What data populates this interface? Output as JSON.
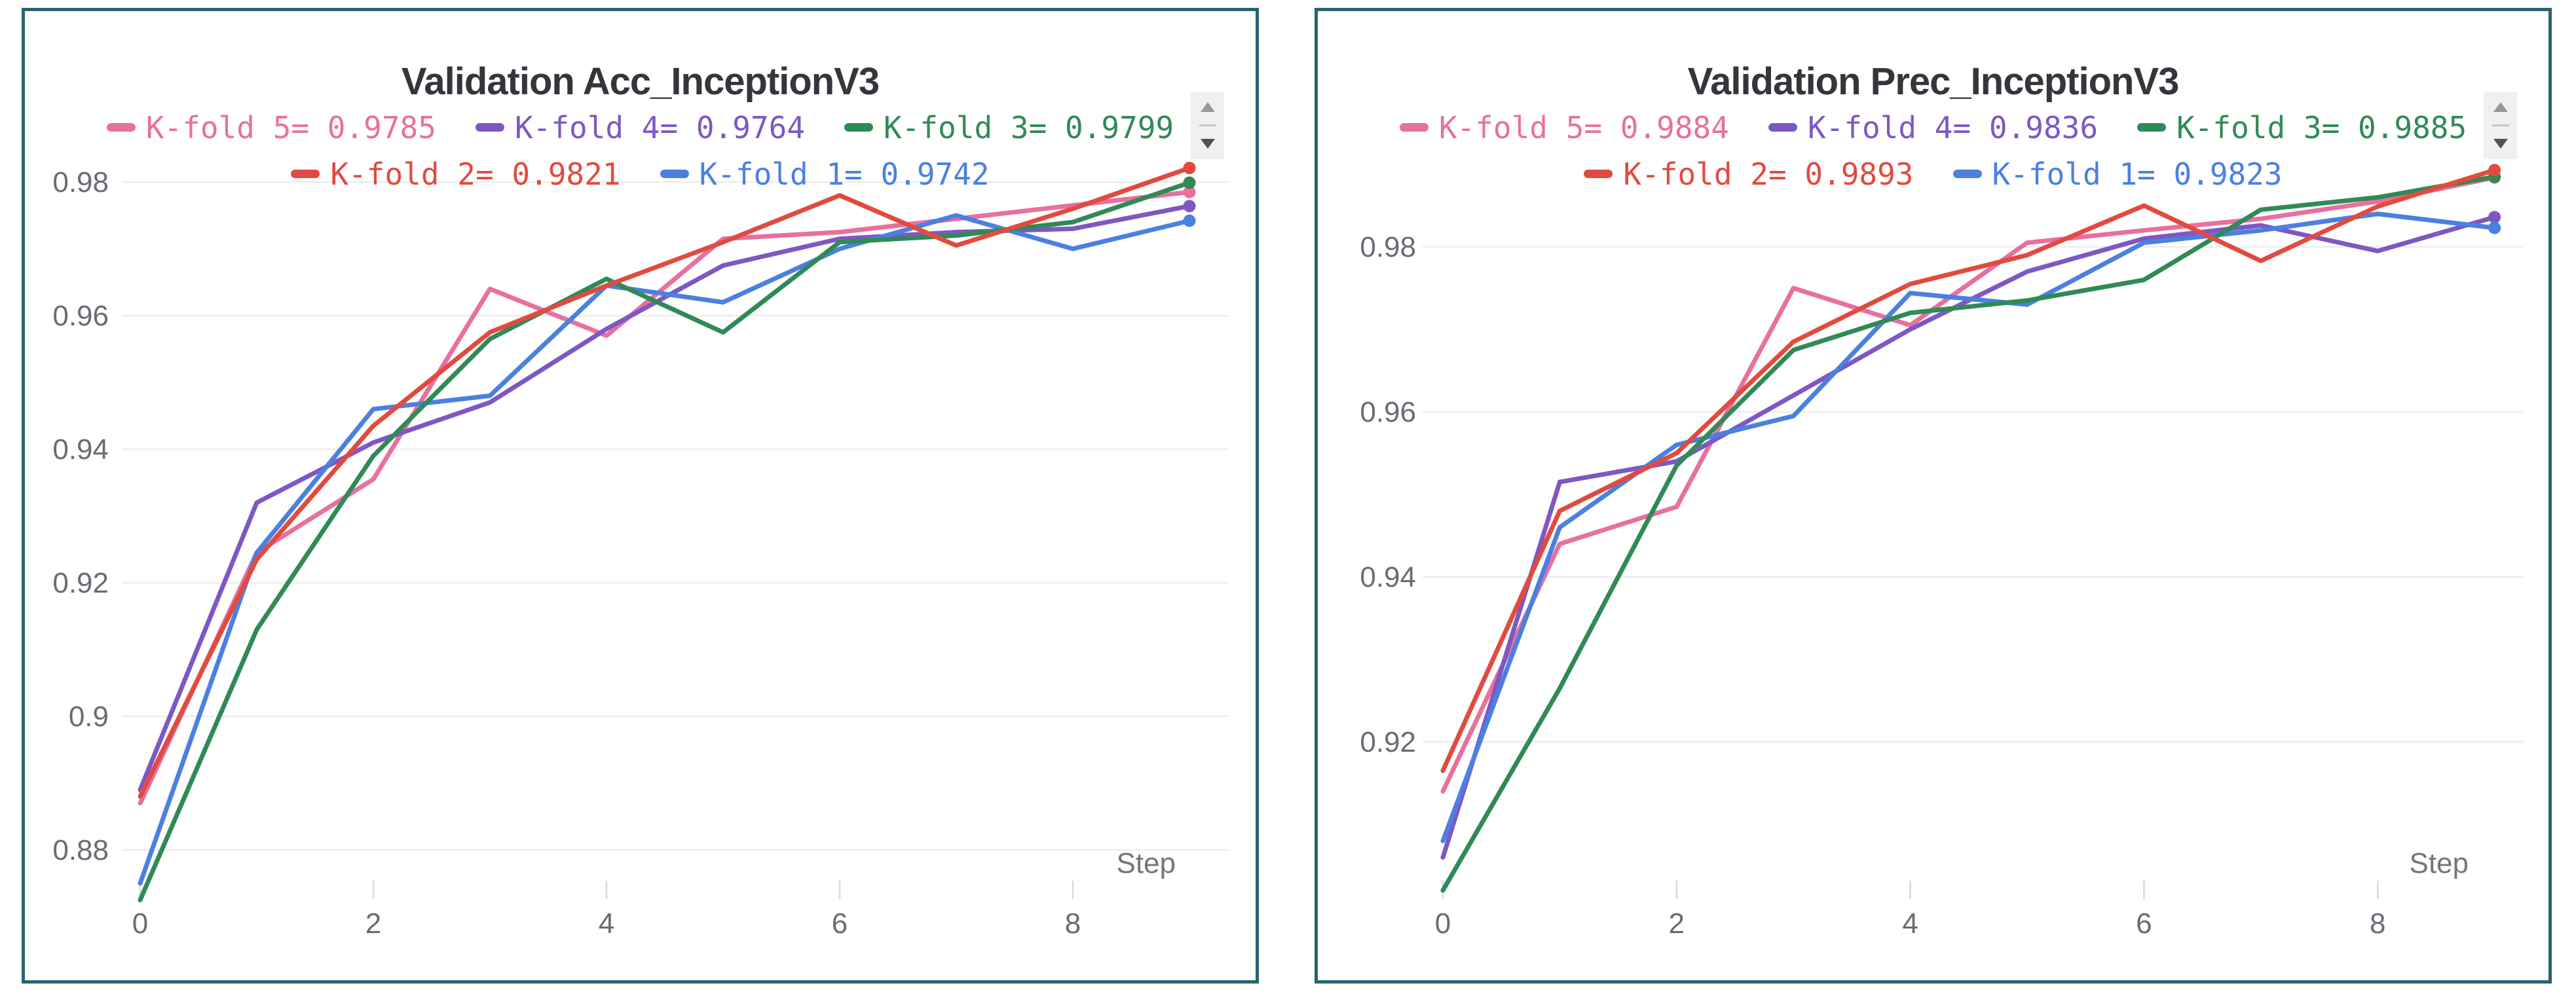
{
  "chart_data": [
    {
      "type": "line",
      "title": "Validation Acc_InceptionV3",
      "xlabel": "Step",
      "x": [
        0,
        1,
        2,
        3,
        4,
        5,
        6,
        7,
        8,
        9
      ],
      "x_tick_labels": [
        "0",
        "2",
        "4",
        "6",
        "8"
      ],
      "y_tick_labels": [
        "0.98",
        "0.96",
        "0.94",
        "0.92",
        "0.9",
        "0.88"
      ],
      "ylim": [
        0.871,
        0.985
      ],
      "grid": "horizontal-only",
      "legend_position": "top-center-two-rows",
      "series": [
        {
          "name": "K-fold 5",
          "legend_label": "K-fold 5= 0.9785",
          "final_value": 0.9785,
          "color": "#e8709f",
          "values": [
            0.887,
            0.9245,
            0.9355,
            0.964,
            0.957,
            0.9715,
            0.9725,
            0.9745,
            0.9765,
            0.9785
          ]
        },
        {
          "name": "K-fold 4",
          "legend_label": "K-fold 4= 0.9764",
          "final_value": 0.9764,
          "color": "#7e57c4",
          "values": [
            0.889,
            0.932,
            0.941,
            0.947,
            0.958,
            0.9675,
            0.9715,
            0.9725,
            0.973,
            0.9764
          ]
        },
        {
          "name": "K-fold 3",
          "legend_label": "K-fold 3= 0.9799",
          "final_value": 0.9799,
          "color": "#308a56",
          "values": [
            0.8725,
            0.913,
            0.939,
            0.9565,
            0.9655,
            0.9575,
            0.971,
            0.972,
            0.974,
            0.9799
          ]
        },
        {
          "name": "K-fold 2",
          "legend_label": "K-fold 2= 0.9821",
          "final_value": 0.9821,
          "color": "#e14b3f",
          "values": [
            0.888,
            0.9235,
            0.9435,
            0.9575,
            0.9645,
            0.971,
            0.978,
            0.9705,
            0.976,
            0.9821
          ]
        },
        {
          "name": "K-fold 1",
          "legend_label": "K-fold 1= 0.9742",
          "final_value": 0.9742,
          "color": "#4b80e1",
          "values": [
            0.875,
            0.9245,
            0.946,
            0.948,
            0.9645,
            0.962,
            0.97,
            0.975,
            0.97,
            0.9742
          ]
        }
      ],
      "legend_rows": [
        [
          "K-fold 5",
          "K-fold 4",
          "K-fold 3"
        ],
        [
          "K-fold 2",
          "K-fold 1"
        ]
      ]
    },
    {
      "type": "line",
      "title": "Validation Prec_InceptionV3",
      "xlabel": "Step",
      "x": [
        0,
        1,
        2,
        3,
        4,
        5,
        6,
        7,
        8,
        9
      ],
      "x_tick_labels": [
        "0",
        "2",
        "4",
        "6",
        "8"
      ],
      "y_tick_labels": [
        "0.98",
        "0.96",
        "0.94",
        "0.92"
      ],
      "ylim": [
        0.9,
        0.992
      ],
      "grid": "horizontal-only",
      "legend_position": "top-center-two-rows",
      "series": [
        {
          "name": "K-fold 5",
          "legend_label": "K-fold 5= 0.9884",
          "final_value": 0.9884,
          "color": "#e8709f",
          "values": [
            0.914,
            0.944,
            0.9485,
            0.975,
            0.9705,
            0.9805,
            0.982,
            0.9834,
            0.9855,
            0.9884
          ]
        },
        {
          "name": "K-fold 4",
          "legend_label": "K-fold 4= 0.9836",
          "final_value": 0.9836,
          "color": "#7e57c4",
          "values": [
            0.906,
            0.9515,
            0.954,
            0.962,
            0.97,
            0.977,
            0.981,
            0.9826,
            0.9795,
            0.9836
          ]
        },
        {
          "name": "K-fold 3",
          "legend_label": "K-fold 3= 0.9885",
          "final_value": 0.9885,
          "color": "#308a56",
          "values": [
            0.902,
            0.9265,
            0.9535,
            0.9675,
            0.972,
            0.9735,
            0.976,
            0.9845,
            0.986,
            0.9885
          ]
        },
        {
          "name": "K-fold 2",
          "legend_label": "K-fold 2= 0.9893",
          "final_value": 0.9893,
          "color": "#e14b3f",
          "values": [
            0.9165,
            0.948,
            0.955,
            0.9685,
            0.9755,
            0.979,
            0.985,
            0.9783,
            0.9849,
            0.9893
          ]
        },
        {
          "name": "K-fold 1",
          "legend_label": "K-fold 1= 0.9823",
          "final_value": 0.9823,
          "color": "#4b80e1",
          "values": [
            0.908,
            0.946,
            0.956,
            0.9595,
            0.9744,
            0.973,
            0.9805,
            0.982,
            0.984,
            0.9823
          ]
        }
      ],
      "legend_rows": [
        [
          "K-fold 5",
          "K-fold 4",
          "K-fold 3"
        ],
        [
          "K-fold 2",
          "K-fold 1"
        ]
      ]
    }
  ]
}
